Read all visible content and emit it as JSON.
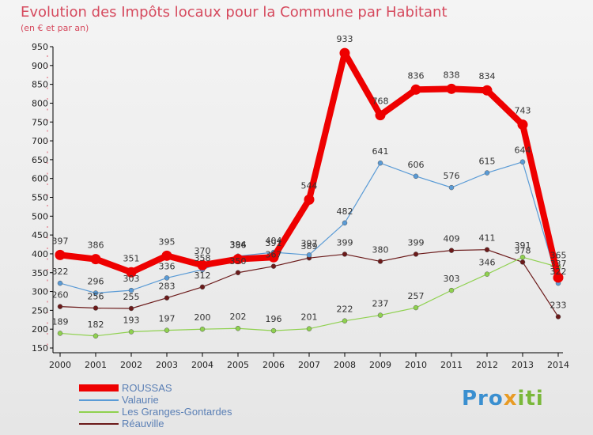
{
  "header": {
    "title": "Evolution des Impôts locaux pour la Commune par Habitant",
    "subtitle": "(en € et par an)"
  },
  "brand": {
    "part1": "Pro",
    "part2": "x",
    "part3": "iti"
  },
  "chart_data": {
    "type": "line",
    "x": [
      "2000",
      "2001",
      "2002",
      "2003",
      "2004",
      "2005",
      "2006",
      "2007",
      "2008",
      "2009",
      "2010",
      "2011",
      "2012",
      "2013",
      "2014"
    ],
    "ylim": [
      150,
      950
    ],
    "yticks": [
      150,
      200,
      250,
      300,
      350,
      400,
      450,
      500,
      550,
      600,
      650,
      700,
      750,
      800,
      850,
      900,
      950
    ],
    "grid": false,
    "legend_position": "bottom-left",
    "series": [
      {
        "name": "ROUSSAS",
        "color": "#ee0000",
        "values": [
          397,
          386,
          351,
          395,
          370,
          386,
          391,
          544,
          933,
          768,
          836,
          838,
          834,
          743,
          337
        ]
      },
      {
        "name": "Valaurie",
        "color": "#5a9bd6",
        "values": [
          322,
          296,
          303,
          336,
          358,
          394,
          404,
          397,
          482,
          641,
          606,
          576,
          615,
          644,
          322
        ]
      },
      {
        "name": "Les Granges-Gontardes",
        "color": "#8fd14f",
        "values": [
          189,
          182,
          193,
          197,
          200,
          202,
          196,
          201,
          222,
          237,
          257,
          303,
          346,
          391,
          365
        ]
      },
      {
        "name": "Réauville",
        "color": "#6b1a1a",
        "values": [
          260,
          256,
          255,
          283,
          312,
          350,
          367,
          389,
          399,
          380,
          399,
          409,
          411,
          378,
          233
        ]
      }
    ]
  }
}
